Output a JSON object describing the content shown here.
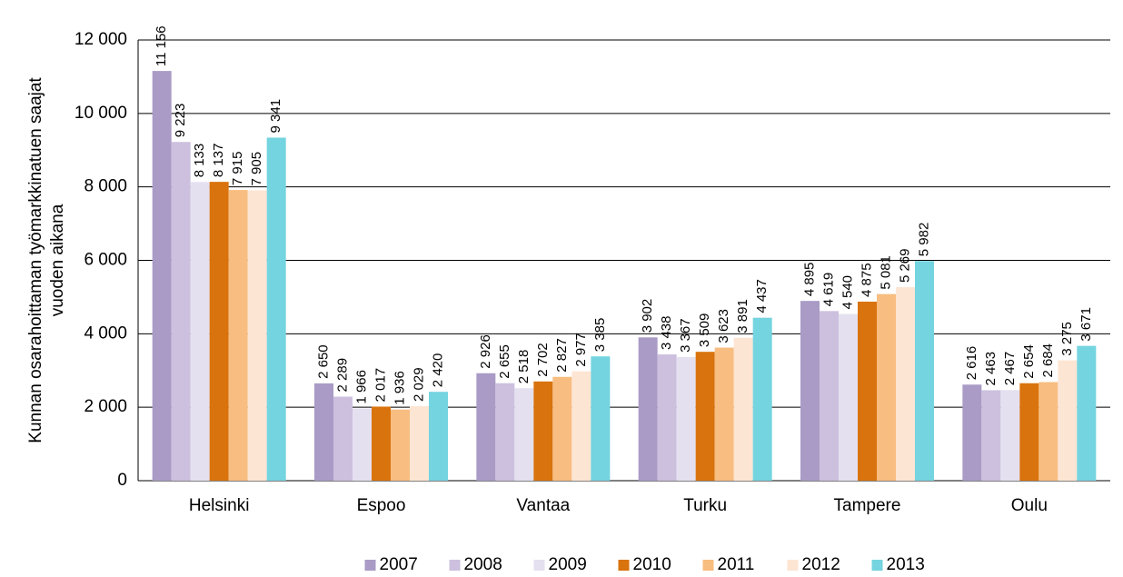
{
  "chart_data": {
    "type": "bar",
    "ylabel": [
      "Kunnan osarahoittaman työmarkkinatuen saajat",
      "vuoden aikana"
    ],
    "categories": [
      "Helsinki",
      "Espoo",
      "Vantaa",
      "Turku",
      "Tampere",
      "Oulu"
    ],
    "series": [
      {
        "name": "2007",
        "color": "#a99bc6",
        "values": [
          11156,
          2650,
          2926,
          3902,
          4895,
          2616
        ],
        "value_labels": [
          "11 156",
          "2 650",
          "2 926",
          "3 902",
          "4 895",
          "2 616"
        ]
      },
      {
        "name": "2008",
        "color": "#ccc0de",
        "values": [
          9223,
          2289,
          2655,
          3438,
          4619,
          2463
        ],
        "value_labels": [
          "9 223",
          "2 289",
          "2 655",
          "3 438",
          "4 619",
          "2 463"
        ]
      },
      {
        "name": "2009",
        "color": "#e5e0ef",
        "values": [
          8133,
          1966,
          2518,
          3367,
          4540,
          2467
        ],
        "value_labels": [
          "8 133",
          "1 966",
          "2 518",
          "3 367",
          "4 540",
          "2 467"
        ]
      },
      {
        "name": "2010",
        "color": "#d9730d",
        "values": [
          8137,
          2017,
          2702,
          3509,
          4875,
          2654
        ],
        "value_labels": [
          "8 137",
          "2 017",
          "2 702",
          "3 509",
          "4 875",
          "2 654"
        ]
      },
      {
        "name": "2011",
        "color": "#f8bd80",
        "values": [
          7915,
          1936,
          2827,
          3623,
          5081,
          2684
        ],
        "value_labels": [
          "7 915",
          "1 936",
          "2 827",
          "3 623",
          "5 081",
          "2 684"
        ]
      },
      {
        "name": "2012",
        "color": "#fde5d3",
        "values": [
          7905,
          2029,
          2977,
          3891,
          5269,
          3275
        ],
        "value_labels": [
          "7 905",
          "2 029",
          "2 977",
          "3 891",
          "5 269",
          "3 275"
        ]
      },
      {
        "name": "2013",
        "color": "#74d4df",
        "values": [
          9341,
          2420,
          3385,
          4437,
          5982,
          3671
        ],
        "value_labels": [
          "9 341",
          "2 420",
          "3 385",
          "4 437",
          "5 982",
          "3 671"
        ]
      }
    ],
    "ylim": [
      0,
      12000
    ],
    "yticks": [
      0,
      {
        "value": 2000,
        "label": "2 000"
      },
      {
        "value": 4000,
        "label": "4 000"
      },
      {
        "value": 6000,
        "label": "6 000"
      },
      {
        "value": 8000,
        "label": "8 000"
      },
      {
        "value": 10000,
        "label": "10 000"
      },
      {
        "value": 12000,
        "label": "12 000"
      }
    ],
    "grid": true,
    "legend": "bottom"
  }
}
